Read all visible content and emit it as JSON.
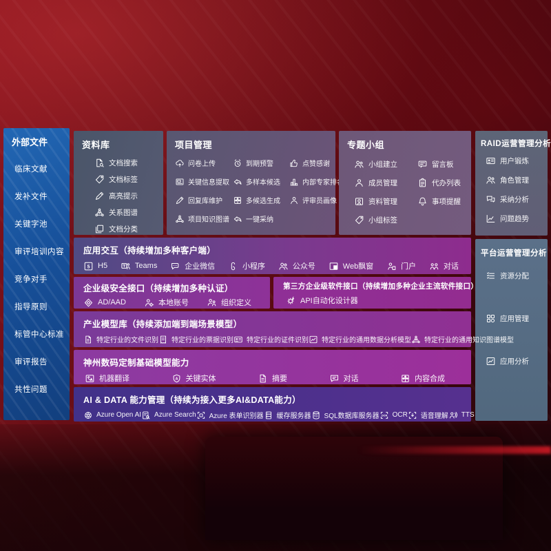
{
  "sidebar": {
    "title": "外部文件",
    "items": [
      "临床文献",
      "发补文件",
      "关键字池",
      "审评培训内容",
      "竞争对手",
      "指导原则",
      "标管中心标准",
      "审评报告",
      "共性问题"
    ]
  },
  "panels": {
    "library": {
      "title": "资料库",
      "items": [
        {
          "label": "文档搜索",
          "icon": "doc-search"
        },
        {
          "label": "文档标签",
          "icon": "tag"
        },
        {
          "label": "高亮提示",
          "icon": "pencil"
        },
        {
          "label": "关系图谱",
          "icon": "network"
        },
        {
          "label": "文档分类",
          "icon": "docs"
        }
      ]
    },
    "project": {
      "title": "项目管理",
      "items": [
        {
          "label": "问卷上传",
          "icon": "cloud-up"
        },
        {
          "label": "到期预警",
          "icon": "alarm"
        },
        {
          "label": "点赞感谢",
          "icon": "thumbs-up"
        },
        {
          "label": "关键信息提取",
          "icon": "extract"
        },
        {
          "label": "多样本候选",
          "icon": "reply"
        },
        {
          "label": "内部专家排名",
          "icon": "rank"
        },
        {
          "label": "回复库维护",
          "icon": "pencil"
        },
        {
          "label": "多候选生成",
          "icon": "compose"
        },
        {
          "label": "评审员画像",
          "icon": "person"
        },
        {
          "label": "项目知识图谱",
          "icon": "network"
        },
        {
          "label": "一键采纳",
          "icon": "reply"
        }
      ]
    },
    "group": {
      "title": "专题小组",
      "items": [
        {
          "label": "小组建立",
          "icon": "people"
        },
        {
          "label": "留言板",
          "icon": "message-board"
        },
        {
          "label": "成员管理",
          "icon": "person"
        },
        {
          "label": "代办列表",
          "icon": "clipboard"
        },
        {
          "label": "资料管理",
          "icon": "album"
        },
        {
          "label": "事项提醒",
          "icon": "bell"
        },
        {
          "label": "小组标签",
          "icon": "tag"
        }
      ]
    },
    "raid": {
      "title": "RAID运营管理分析",
      "items": [
        {
          "label": "用户锻炼",
          "icon": "id-card"
        },
        {
          "label": "角色管理",
          "icon": "people"
        },
        {
          "label": "采纳分析",
          "icon": "chat-bubbles"
        },
        {
          "label": "问题趋势",
          "icon": "trend"
        }
      ]
    },
    "platform": {
      "title": "平台运营管理分析",
      "items": [
        {
          "label": "资源分配",
          "icon": "list"
        },
        {
          "label": "应用管理",
          "icon": "apps"
        },
        {
          "label": "应用分析",
          "icon": "chart-box"
        }
      ]
    }
  },
  "rows": {
    "interaction": {
      "title": "应用交互（持续增加多种客户端）",
      "items": [
        {
          "label": "H5",
          "icon": "h5"
        },
        {
          "label": "Teams",
          "icon": "teams"
        },
        {
          "label": "企业微信",
          "icon": "wechat"
        },
        {
          "label": "小程序",
          "icon": "mini-program"
        },
        {
          "label": "公众号",
          "icon": "people"
        },
        {
          "label": "Web飘窗",
          "icon": "web-window"
        },
        {
          "label": "门户",
          "icon": "portal"
        },
        {
          "label": "对话",
          "icon": "dialog"
        }
      ]
    },
    "security": {
      "title": "企业级安全接口（持续增加多种认证）",
      "items": [
        {
          "label": "AD/AAD",
          "icon": "shield"
        },
        {
          "label": "本地账号",
          "icon": "account"
        },
        {
          "label": "组织定义",
          "icon": "org"
        }
      ]
    },
    "thirdparty": {
      "title": "第三方企业级软件接口（持续增加多种企业主流软件接口）",
      "items": [
        {
          "label": "API自动化设计器",
          "icon": "api-gear"
        }
      ]
    },
    "models": {
      "title": "产业模型库（持续添加端到端场景模型）",
      "items": [
        {
          "label": "特定行业的文件识别",
          "icon": "file"
        },
        {
          "label": "特定行业的票据识别",
          "icon": "receipt"
        },
        {
          "label": "特定行业的证件识别",
          "icon": "id-card"
        },
        {
          "label": "特定行业的通用数据分析模型",
          "icon": "chart-box"
        },
        {
          "label": "特定行业的通用知识图谱模型",
          "icon": "network"
        }
      ]
    },
    "foundation": {
      "title": "神州数码定制基础模型能力",
      "items": [
        {
          "label": "机器翻译",
          "icon": "translate"
        },
        {
          "label": "关键实体",
          "icon": "entity"
        },
        {
          "label": "摘要",
          "icon": "file"
        },
        {
          "label": "对话",
          "icon": "chat"
        },
        {
          "label": "内容合成",
          "icon": "compose"
        }
      ]
    },
    "aidata": {
      "title": "AI & DATA 能力管理（持续为接入更多AI&DATA能力）",
      "items": [
        {
          "label": "Azure Open AI",
          "icon": "openai"
        },
        {
          "label": "Azure Search",
          "icon": "azure-search"
        },
        {
          "label": "Azure 表单识别器",
          "icon": "scan"
        },
        {
          "label": "缓存服务器",
          "icon": "cache-server"
        },
        {
          "label": "SQL数据库服务器",
          "icon": "sql-db"
        },
        {
          "label": "OCR",
          "icon": "ocr"
        },
        {
          "label": "语音理解",
          "icon": "speech"
        },
        {
          "label": "TTS",
          "icon": "tts"
        }
      ]
    }
  },
  "colors": {
    "sidebar_blue": "#1b5ca6",
    "panel_grey": "#535a71",
    "raid_grey": "#5e6477",
    "platform_slate": "#58708a",
    "magenta": "#8e2d90",
    "indigo_row": "#42318a",
    "background_red": "#6b0d15"
  }
}
